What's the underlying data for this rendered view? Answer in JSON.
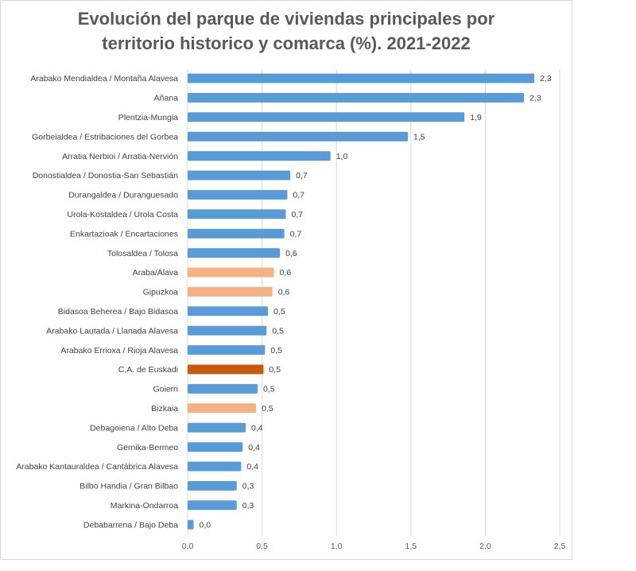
{
  "chart_data": {
    "type": "bar",
    "orientation": "horizontal",
    "title_lines": [
      "Evolución del parque de viviendas principales por",
      "territorio historico y comarca (%). 2021-2022"
    ],
    "xlim": [
      0,
      2.5
    ],
    "x_ticks": [
      "0,0",
      "0,5",
      "1,0",
      "1,5",
      "2,0",
      "2,5"
    ],
    "grid": true,
    "colors": {
      "comarca": "#5b9bd5",
      "territorio": "#f4b183",
      "total": "#c55a11"
    },
    "bars": [
      {
        "label": "Arabako Mendialdea / Montaña Alavesa",
        "value": 2.33,
        "display": "2,3",
        "kind": "comarca"
      },
      {
        "label": "Añana",
        "value": 2.26,
        "display": "2,3",
        "kind": "comarca"
      },
      {
        "label": "Plentzia-Mungia",
        "value": 1.86,
        "display": "1,9",
        "kind": "comarca"
      },
      {
        "label": "Gorbeialdea / Estribaciones del Gorbea",
        "value": 1.48,
        "display": "1,5",
        "kind": "comarca"
      },
      {
        "label": "Arratia Nerbioi / Arratia-Nervión",
        "value": 0.96,
        "display": "1,0",
        "kind": "comarca"
      },
      {
        "label": "Donostialdea / Donostia-San Sebastián",
        "value": 0.69,
        "display": "0,7",
        "kind": "comarca"
      },
      {
        "label": "Durangaldea / Duranguesado",
        "value": 0.67,
        "display": "0,7",
        "kind": "comarca"
      },
      {
        "label": "Urola-Kostaldea / Urola Costa",
        "value": 0.66,
        "display": "0,7",
        "kind": "comarca"
      },
      {
        "label": "Enkartazioak / Encartaciones",
        "value": 0.65,
        "display": "0,7",
        "kind": "comarca"
      },
      {
        "label": "Tolosaldea / Tolosa",
        "value": 0.62,
        "display": "0,6",
        "kind": "comarca"
      },
      {
        "label": "Araba/Álava",
        "value": 0.58,
        "display": "0,6",
        "kind": "territorio"
      },
      {
        "label": "Gipuzkoa",
        "value": 0.57,
        "display": "0,6",
        "kind": "territorio"
      },
      {
        "label": "Bidasoa Beherea / Bajo Bidasoa",
        "value": 0.54,
        "display": "0,5",
        "kind": "comarca"
      },
      {
        "label": "Arabako Lautada / Llanada Alavesa",
        "value": 0.53,
        "display": "0,5",
        "kind": "comarca"
      },
      {
        "label": "Arabako Errioxa / Rioja Alavesa",
        "value": 0.52,
        "display": "0,5",
        "kind": "comarca"
      },
      {
        "label": "C.A. de Euskadi",
        "value": 0.51,
        "display": "0,5",
        "kind": "total"
      },
      {
        "label": "Goierri",
        "value": 0.47,
        "display": "0,5",
        "kind": "comarca"
      },
      {
        "label": "Bizkaia",
        "value": 0.46,
        "display": "0,5",
        "kind": "territorio"
      },
      {
        "label": "Debagoiena / Alto Deba",
        "value": 0.39,
        "display": "0,4",
        "kind": "comarca"
      },
      {
        "label": "Gernika-Bermeo",
        "value": 0.37,
        "display": "0,4",
        "kind": "comarca"
      },
      {
        "label": "Arabako Kantauraldea / Cantábrica Alavesa",
        "value": 0.36,
        "display": "0,4",
        "kind": "comarca"
      },
      {
        "label": "Bilbo Handia / Gran Bilbao",
        "value": 0.33,
        "display": "0,3",
        "kind": "comarca"
      },
      {
        "label": "Markina-Ondarroa",
        "value": 0.33,
        "display": "0,3",
        "kind": "comarca"
      },
      {
        "label": "Debabarrena / Bajo Deba",
        "value": 0.04,
        "display": "0,0",
        "kind": "comarca"
      }
    ]
  }
}
